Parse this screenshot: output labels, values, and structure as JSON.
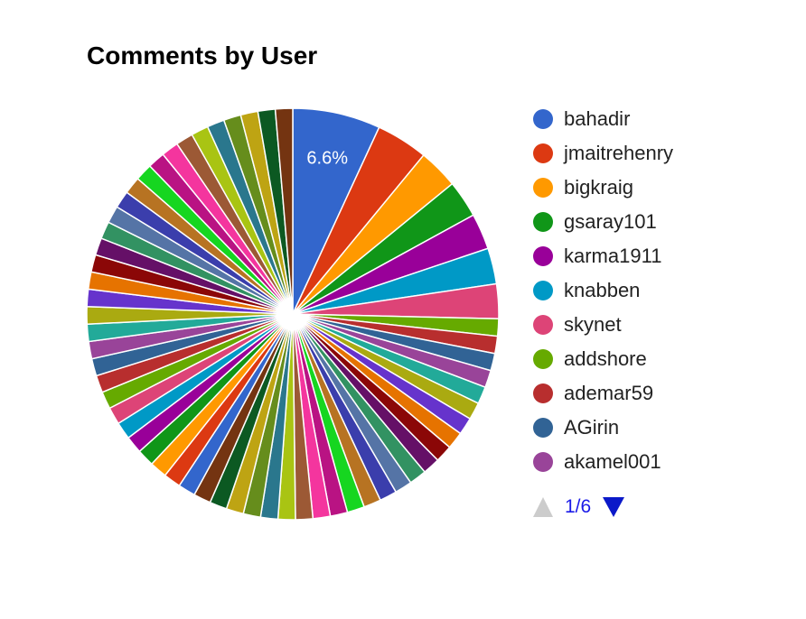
{
  "chart_data": {
    "type": "pie",
    "title": "Comments by User",
    "shown_label": "6.6%",
    "slice_count": 62,
    "slices": [
      {
        "name": "bahadir",
        "value": 6.6,
        "color": "#3366cc"
      },
      {
        "name": "jmaitrehenry",
        "value": 3.9,
        "color": "#dc3912"
      },
      {
        "name": "bigkraig",
        "value": 3.0,
        "color": "#ff9900"
      },
      {
        "name": "gsaray101",
        "value": 2.8,
        "color": "#109618"
      },
      {
        "name": "karma1911",
        "value": 2.7,
        "color": "#990099"
      },
      {
        "name": "knabben",
        "value": 2.7,
        "color": "#0099c6"
      },
      {
        "name": "skynet",
        "value": 2.6,
        "color": "#dd4477"
      },
      {
        "name": "addshore",
        "value": 1.3,
        "color": "#66aa00"
      },
      {
        "name": "ademar59",
        "value": 1.3,
        "color": "#b82e2e"
      },
      {
        "name": "AGirin",
        "value": 1.3,
        "color": "#316395"
      },
      {
        "name": "akamel001",
        "value": 1.3,
        "color": "#994499"
      }
    ],
    "other_slice_value": 1.3,
    "palette": [
      "#22aa99",
      "#aaaa11",
      "#6633cc",
      "#e67300",
      "#8b0707",
      "#651067",
      "#329262",
      "#5574a6",
      "#3b3eac",
      "#b77322",
      "#16d620",
      "#b91383",
      "#f4359e",
      "#9c5935",
      "#a9c413",
      "#2a778d",
      "#668d1c",
      "#bea413",
      "#0c5922",
      "#743411",
      "#3366cc",
      "#dc3912",
      "#ff9900",
      "#109618",
      "#990099",
      "#0099c6",
      "#dd4477",
      "#66aa00",
      "#b82e2e",
      "#316395",
      "#994499"
    ]
  },
  "legend": {
    "page_text": "1/6"
  }
}
